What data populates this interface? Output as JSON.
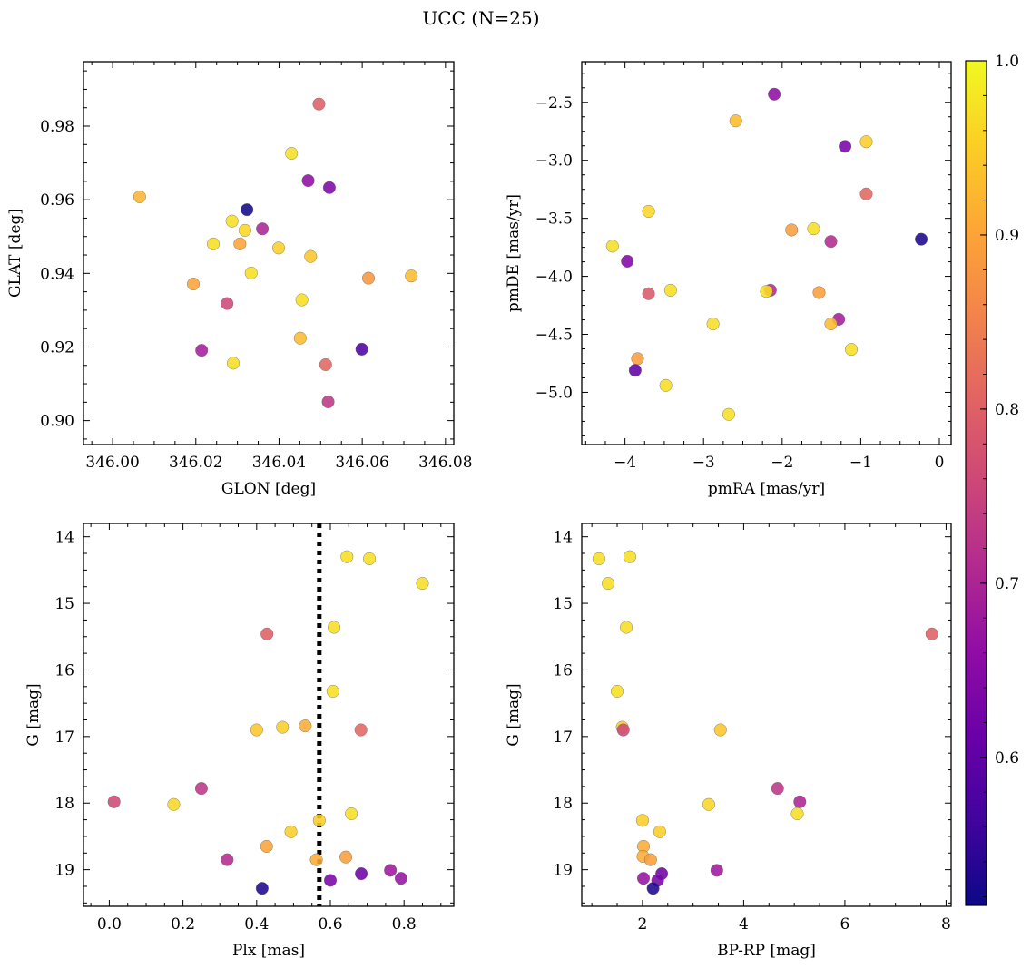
{
  "figure": {
    "title": "UCC (N=25)"
  },
  "colorbar": {
    "ticks": [
      {
        "value": 0.6,
        "label": "0.6"
      },
      {
        "value": 0.7,
        "label": "0.7"
      },
      {
        "value": 0.8,
        "label": "0.8"
      },
      {
        "value": 0.9,
        "label": "0.9"
      },
      {
        "value": 1.0,
        "label": "1.0"
      }
    ],
    "range": [
      0.515,
      1.0
    ],
    "colormap": "plasma"
  },
  "chart_data": [
    {
      "type": "scatter",
      "xlabel": "GLON [deg]",
      "ylabel": "GLAT [deg]",
      "xlim": [
        345.993,
        346.082
      ],
      "ylim": [
        0.8935,
        0.9975
      ],
      "xticks": [
        {
          "value": 346.0,
          "label": "346.00"
        },
        {
          "value": 346.02,
          "label": "346.02"
        },
        {
          "value": 346.04,
          "label": "346.04"
        },
        {
          "value": 346.06,
          "label": "346.06"
        },
        {
          "value": 346.08,
          "label": "346.08"
        }
      ],
      "yticks": [
        {
          "value": 0.9,
          "label": "0.90"
        },
        {
          "value": 0.92,
          "label": "0.92"
        },
        {
          "value": 0.94,
          "label": "0.94"
        },
        {
          "value": 0.96,
          "label": "0.96"
        },
        {
          "value": 0.98,
          "label": "0.98"
        }
      ],
      "points": [
        {
          "x": 346.0496,
          "y": 0.986,
          "c": 0.8
        },
        {
          "x": 346.043,
          "y": 0.9726,
          "c": 0.97
        },
        {
          "x": 346.047,
          "y": 0.9652,
          "c": 0.66
        },
        {
          "x": 346.0521,
          "y": 0.9633,
          "c": 0.64
        },
        {
          "x": 346.0065,
          "y": 0.9608,
          "c": 0.92
        },
        {
          "x": 346.0323,
          "y": 0.9573,
          "c": 0.52
        },
        {
          "x": 346.0287,
          "y": 0.9542,
          "c": 0.97
        },
        {
          "x": 346.036,
          "y": 0.9521,
          "c": 0.7
        },
        {
          "x": 346.0318,
          "y": 0.9517,
          "c": 0.96
        },
        {
          "x": 346.0242,
          "y": 0.948,
          "c": 0.97
        },
        {
          "x": 346.0306,
          "y": 0.948,
          "c": 0.9
        },
        {
          "x": 346.0399,
          "y": 0.9469,
          "c": 0.95
        },
        {
          "x": 346.0476,
          "y": 0.9446,
          "c": 0.94
        },
        {
          "x": 346.0333,
          "y": 0.9401,
          "c": 0.97
        },
        {
          "x": 346.0718,
          "y": 0.9393,
          "c": 0.93
        },
        {
          "x": 346.0615,
          "y": 0.9387,
          "c": 0.88
        },
        {
          "x": 346.0194,
          "y": 0.9371,
          "c": 0.9
        },
        {
          "x": 346.0455,
          "y": 0.9328,
          "c": 0.97
        },
        {
          "x": 346.0275,
          "y": 0.9318,
          "c": 0.76
        },
        {
          "x": 346.0451,
          "y": 0.9224,
          "c": 0.93
        },
        {
          "x": 346.0599,
          "y": 0.9194,
          "c": 0.58
        },
        {
          "x": 346.0214,
          "y": 0.9191,
          "c": 0.69
        },
        {
          "x": 346.029,
          "y": 0.9156,
          "c": 0.97
        },
        {
          "x": 346.0512,
          "y": 0.9152,
          "c": 0.81
        },
        {
          "x": 346.0518,
          "y": 0.9051,
          "c": 0.73
        }
      ]
    },
    {
      "type": "scatter",
      "xlabel": "pmRA [mas/yr]",
      "ylabel": "pmDE [mas/yr]",
      "xlim": [
        -4.55,
        0.15
      ],
      "ylim": [
        -5.45,
        -2.15
      ],
      "xticks": [
        {
          "value": -4,
          "label": "−4"
        },
        {
          "value": -3,
          "label": "−3"
        },
        {
          "value": -2,
          "label": "−2"
        },
        {
          "value": -1,
          "label": "−1"
        },
        {
          "value": 0,
          "label": "0"
        }
      ],
      "yticks": [
        {
          "value": -5.0,
          "label": "−5.0"
        },
        {
          "value": -4.5,
          "label": "−4.5"
        },
        {
          "value": -4.0,
          "label": "−4.0"
        },
        {
          "value": -3.5,
          "label": "−3.5"
        },
        {
          "value": -3.0,
          "label": "−3.0"
        },
        {
          "value": -2.5,
          "label": "−2.5"
        }
      ],
      "points": [
        {
          "x": -2.1,
          "y": -2.43,
          "c": 0.66
        },
        {
          "x": -2.59,
          "y": -2.66,
          "c": 0.93
        },
        {
          "x": -1.2,
          "y": -2.88,
          "c": 0.63
        },
        {
          "x": -0.93,
          "y": -2.84,
          "c": 0.95
        },
        {
          "x": -0.93,
          "y": -3.29,
          "c": 0.81
        },
        {
          "x": -3.7,
          "y": -3.44,
          "c": 0.96
        },
        {
          "x": -0.23,
          "y": -3.68,
          "c": 0.53
        },
        {
          "x": -1.88,
          "y": -3.6,
          "c": 0.89
        },
        {
          "x": -1.6,
          "y": -3.59,
          "c": 0.97
        },
        {
          "x": -4.16,
          "y": -3.74,
          "c": 0.97
        },
        {
          "x": -1.38,
          "y": -3.7,
          "c": 0.71
        },
        {
          "x": -3.97,
          "y": -3.87,
          "c": 0.64
        },
        {
          "x": -3.7,
          "y": -4.15,
          "c": 0.79
        },
        {
          "x": -3.42,
          "y": -4.12,
          "c": 0.97
        },
        {
          "x": -2.15,
          "y": -4.12,
          "c": 0.71
        },
        {
          "x": -2.2,
          "y": -4.13,
          "c": 0.97
        },
        {
          "x": -1.53,
          "y": -4.14,
          "c": 0.89
        },
        {
          "x": -1.28,
          "y": -4.37,
          "c": 0.69
        },
        {
          "x": -1.38,
          "y": -4.41,
          "c": 0.93
        },
        {
          "x": -2.88,
          "y": -4.41,
          "c": 0.97
        },
        {
          "x": -1.12,
          "y": -4.63,
          "c": 0.97
        },
        {
          "x": -3.84,
          "y": -4.71,
          "c": 0.89
        },
        {
          "x": -3.87,
          "y": -4.81,
          "c": 0.6
        },
        {
          "x": -3.48,
          "y": -4.94,
          "c": 0.97
        },
        {
          "x": -2.68,
          "y": -5.19,
          "c": 0.97
        }
      ]
    },
    {
      "type": "scatter",
      "xlabel": "Plx [mas]",
      "ylabel": "G [mag]",
      "xlim": [
        -0.07,
        0.935
      ],
      "ylim": [
        19.55,
        13.8
      ],
      "y_inverted": true,
      "vline": {
        "x": 0.57,
        "style": "dotted",
        "color": "#000000"
      },
      "xticks": [
        {
          "value": 0.0,
          "label": "0.0"
        },
        {
          "value": 0.2,
          "label": "0.2"
        },
        {
          "value": 0.4,
          "label": "0.4"
        },
        {
          "value": 0.6,
          "label": "0.6"
        },
        {
          "value": 0.8,
          "label": "0.8"
        }
      ],
      "yticks": [
        {
          "value": 14,
          "label": "14"
        },
        {
          "value": 15,
          "label": "15"
        },
        {
          "value": 16,
          "label": "16"
        },
        {
          "value": 17,
          "label": "17"
        },
        {
          "value": 18,
          "label": "18"
        },
        {
          "value": 19,
          "label": "19"
        }
      ],
      "points": [
        {
          "x": 0.645,
          "y": 14.3,
          "c": 0.97
        },
        {
          "x": 0.706,
          "y": 14.33,
          "c": 0.97
        },
        {
          "x": 0.85,
          "y": 14.7,
          "c": 0.97
        },
        {
          "x": 0.428,
          "y": 15.46,
          "c": 0.8
        },
        {
          "x": 0.61,
          "y": 15.36,
          "c": 0.97
        },
        {
          "x": 0.607,
          "y": 16.32,
          "c": 0.97
        },
        {
          "x": 0.4,
          "y": 16.9,
          "c": 0.94
        },
        {
          "x": 0.47,
          "y": 16.86,
          "c": 0.95
        },
        {
          "x": 0.532,
          "y": 16.84,
          "c": 0.91
        },
        {
          "x": 0.683,
          "y": 16.9,
          "c": 0.81
        },
        {
          "x": 0.013,
          "y": 17.98,
          "c": 0.76
        },
        {
          "x": 0.175,
          "y": 18.02,
          "c": 0.96
        },
        {
          "x": 0.25,
          "y": 17.78,
          "c": 0.73
        },
        {
          "x": 0.657,
          "y": 18.16,
          "c": 0.97
        },
        {
          "x": 0.57,
          "y": 18.26,
          "c": 0.95
        },
        {
          "x": 0.493,
          "y": 18.43,
          "c": 0.95
        },
        {
          "x": 0.427,
          "y": 18.65,
          "c": 0.9
        },
        {
          "x": 0.32,
          "y": 18.85,
          "c": 0.71
        },
        {
          "x": 0.562,
          "y": 18.85,
          "c": 0.91
        },
        {
          "x": 0.642,
          "y": 18.81,
          "c": 0.89
        },
        {
          "x": 0.763,
          "y": 19.01,
          "c": 0.68
        },
        {
          "x": 0.684,
          "y": 19.06,
          "c": 0.62
        },
        {
          "x": 0.792,
          "y": 19.13,
          "c": 0.67
        },
        {
          "x": 0.6,
          "y": 19.16,
          "c": 0.63
        },
        {
          "x": 0.415,
          "y": 19.28,
          "c": 0.53
        }
      ]
    },
    {
      "type": "scatter",
      "xlabel": "BP-RP [mag]",
      "ylabel": "G [mag]",
      "xlim": [
        0.8,
        8.1
      ],
      "ylim": [
        19.55,
        13.8
      ],
      "y_inverted": true,
      "xticks": [
        {
          "value": 2,
          "label": "2"
        },
        {
          "value": 4,
          "label": "4"
        },
        {
          "value": 6,
          "label": "6"
        },
        {
          "value": 8,
          "label": "8"
        }
      ],
      "yticks": [
        {
          "value": 14,
          "label": "14"
        },
        {
          "value": 15,
          "label": "15"
        },
        {
          "value": 16,
          "label": "16"
        },
        {
          "value": 17,
          "label": "17"
        },
        {
          "value": 18,
          "label": "18"
        },
        {
          "value": 19,
          "label": "19"
        }
      ],
      "points": [
        {
          "x": 1.14,
          "y": 14.33,
          "c": 0.97
        },
        {
          "x": 1.75,
          "y": 14.3,
          "c": 0.97
        },
        {
          "x": 1.32,
          "y": 14.7,
          "c": 0.97
        },
        {
          "x": 7.72,
          "y": 15.46,
          "c": 0.8
        },
        {
          "x": 1.68,
          "y": 15.36,
          "c": 0.97
        },
        {
          "x": 1.5,
          "y": 16.32,
          "c": 0.97
        },
        {
          "x": 1.6,
          "y": 16.86,
          "c": 0.95
        },
        {
          "x": 1.62,
          "y": 16.9,
          "c": 0.76
        },
        {
          "x": 3.54,
          "y": 16.9,
          "c": 0.94
        },
        {
          "x": 4.67,
          "y": 17.78,
          "c": 0.73
        },
        {
          "x": 5.11,
          "y": 17.98,
          "c": 0.7
        },
        {
          "x": 3.31,
          "y": 18.02,
          "c": 0.96
        },
        {
          "x": 5.06,
          "y": 18.16,
          "c": 0.97
        },
        {
          "x": 2.0,
          "y": 18.26,
          "c": 0.95
        },
        {
          "x": 2.34,
          "y": 18.43,
          "c": 0.95
        },
        {
          "x": 2.02,
          "y": 18.65,
          "c": 0.91
        },
        {
          "x": 2.01,
          "y": 18.8,
          "c": 0.91
        },
        {
          "x": 2.16,
          "y": 18.85,
          "c": 0.89
        },
        {
          "x": 3.47,
          "y": 19.01,
          "c": 0.68
        },
        {
          "x": 2.38,
          "y": 19.06,
          "c": 0.62
        },
        {
          "x": 2.02,
          "y": 19.13,
          "c": 0.67
        },
        {
          "x": 2.3,
          "y": 19.16,
          "c": 0.63
        },
        {
          "x": 2.21,
          "y": 19.28,
          "c": 0.53
        }
      ]
    }
  ]
}
